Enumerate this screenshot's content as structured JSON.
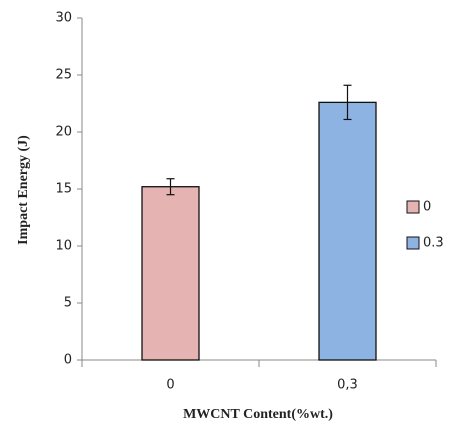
{
  "chart_data": {
    "type": "bar",
    "x_label": "MWCNT Content(%wt.)",
    "y_label": "Impact Energy (J)",
    "categories": [
      "0",
      "0,3"
    ],
    "series": [
      {
        "name": "0",
        "color": "#e6b3b3",
        "values": [
          15.2,
          null
        ],
        "errors": [
          0.7,
          null
        ]
      },
      {
        "name": "0.3",
        "color": "#8db3e2",
        "values": [
          null,
          22.6
        ],
        "errors": [
          null,
          1.5
        ]
      }
    ],
    "ylim": [
      0,
      30
    ],
    "yticks": [
      0,
      5,
      10,
      15,
      20,
      25,
      30
    ],
    "grid": false,
    "legend": "right"
  }
}
